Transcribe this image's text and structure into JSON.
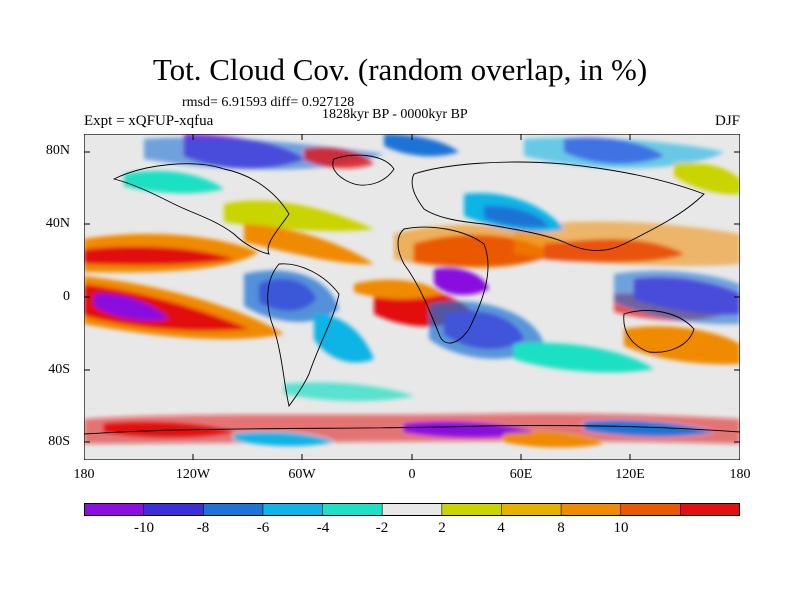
{
  "title": "Tot. Cloud Cov. (random overlap, in %)",
  "stats": "rmsd= 6.91593 diff= 0.927128",
  "period": "1828kyr BP - 0000kyr BP",
  "experiment": "Expt = xQFUP-xqfua",
  "season": "DJF",
  "lat_labels": [
    "80N",
    "40N",
    "0",
    "40S",
    "80S"
  ],
  "lon_labels": [
    "180",
    "120W",
    "60W",
    "0",
    "60E",
    "120E",
    "180"
  ],
  "colorbar": {
    "labels": [
      "-10",
      "-8",
      "-6",
      "-4",
      "-2",
      "2",
      "4",
      "8",
      "10"
    ],
    "colors": [
      "#8a0fe0",
      "#3c2fd9",
      "#1f73d6",
      "#10b4e6",
      "#1de0c4",
      "#e8e8e8",
      "#c9d400",
      "#e8b000",
      "#f08a00",
      "#e85a00",
      "#e21010"
    ]
  }
}
